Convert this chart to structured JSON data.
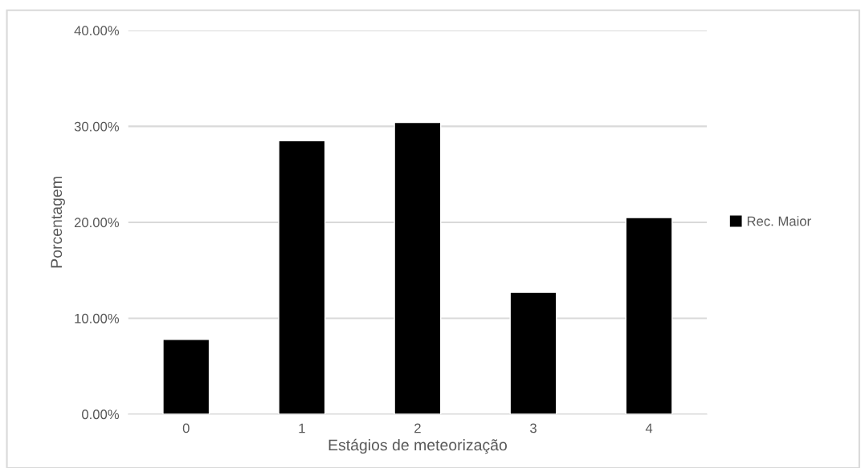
{
  "chart_data": {
    "type": "bar",
    "xlabel": "Estágios de meteorização",
    "ylabel": "Porcentagem",
    "categories": [
      "0",
      "1",
      "2",
      "3",
      "4"
    ],
    "series": [
      {
        "name": "Rec. Maior",
        "color": "#000000",
        "values": [
          7.8,
          28.5,
          30.4,
          12.7,
          20.5
        ]
      }
    ],
    "ylim": [
      0,
      40
    ],
    "yticks": [
      {
        "value": 0,
        "label": "0.00%"
      },
      {
        "value": 10,
        "label": "10.00%"
      },
      {
        "value": 20,
        "label": "20.00%"
      },
      {
        "value": 30,
        "label": "30.00%"
      },
      {
        "value": 40,
        "label": "40.00%"
      }
    ],
    "grid": "y",
    "legend": "right"
  }
}
